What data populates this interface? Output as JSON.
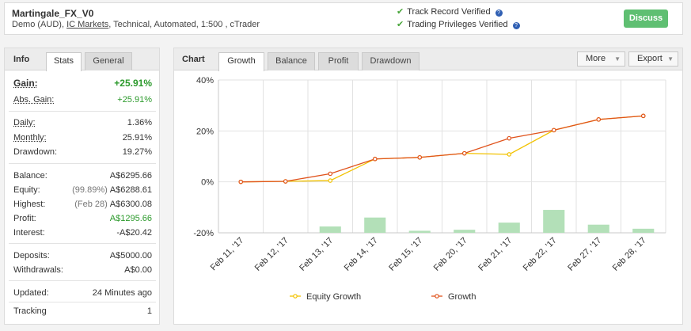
{
  "header": {
    "title": "Martingale_FX_V0",
    "sub_prefix": "Demo (AUD),",
    "broker": "IC Markets",
    "sub_suffix": ", Technical, Automated, 1:500 , cTrader",
    "verifications": [
      {
        "label": "Track Record Verified"
      },
      {
        "label": "Trading Privileges Verified"
      }
    ],
    "discuss_label": "Discuss"
  },
  "left_tabs": {
    "info": "Info",
    "stats": "Stats",
    "general": "General"
  },
  "stats": {
    "gain": {
      "label": "Gain:",
      "value": "+25.91%"
    },
    "abs_gain": {
      "label": "Abs. Gain:",
      "value": "+25.91%"
    },
    "daily": {
      "label": "Daily:",
      "value": "1.36%"
    },
    "monthly": {
      "label": "Monthly:",
      "value": "25.91%"
    },
    "drawdown": {
      "label": "Drawdown:",
      "value": "19.27%"
    },
    "balance": {
      "label": "Balance:",
      "value": "A$6295.66"
    },
    "equity": {
      "label": "Equity:",
      "extra": "(99.89%)",
      "value": "A$6288.61"
    },
    "highest": {
      "label": "Highest:",
      "extra": "(Feb 28)",
      "value": "A$6300.08"
    },
    "profit": {
      "label": "Profit:",
      "value": "A$1295.66"
    },
    "interest": {
      "label": "Interest:",
      "value": "-A$20.42"
    },
    "deposits": {
      "label": "Deposits:",
      "value": "A$5000.00"
    },
    "withdrawals": {
      "label": "Withdrawals:",
      "value": "A$0.00"
    },
    "updated": {
      "label": "Updated:",
      "value": "24 Minutes ago"
    },
    "tracking": {
      "label": "Tracking",
      "value": "1"
    }
  },
  "chart_tabs": {
    "chart": "Chart",
    "growth": "Growth",
    "balance": "Balance",
    "profit": "Profit",
    "drawdown": "Drawdown"
  },
  "dropdowns": {
    "more": "More",
    "export": "Export"
  },
  "colors": {
    "equity": "#f2c200",
    "growth": "#e0531c",
    "bars": "#b3e0b8",
    "accent_green": "#5fbf72"
  },
  "chart_data": {
    "type": "line",
    "categories": [
      "Feb 11, '17",
      "Feb 12, '17",
      "Feb 13, '17",
      "Feb 14, '17",
      "Feb 15, '17",
      "Feb 20, '17",
      "Feb 21, '17",
      "Feb 22, '17",
      "Feb 27, '17",
      "Feb 28, '17"
    ],
    "y_ticks": [
      "40%",
      "20%",
      "0%",
      "-20%"
    ],
    "ylim": [
      -20,
      40
    ],
    "series": [
      {
        "name": "Equity Growth",
        "values": [
          0,
          0.2,
          0.5,
          9,
          9.6,
          11.2,
          10.8,
          20.3,
          24.5,
          25.9
        ]
      },
      {
        "name": "Growth",
        "values": [
          0,
          0.2,
          3.2,
          9,
          9.6,
          11.2,
          17.1,
          20.3,
          24.5,
          25.9
        ]
      }
    ],
    "bars": [
      0,
      0,
      2.5,
      6,
      0.8,
      1.2,
      4,
      9,
      3.2,
      1.6
    ],
    "grid": true,
    "legend": "bottom"
  }
}
